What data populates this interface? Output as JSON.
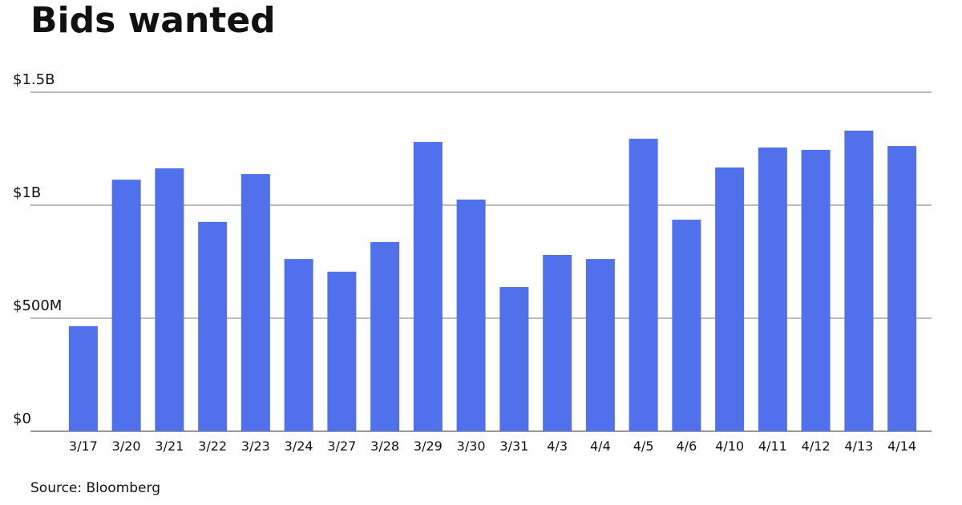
{
  "chart_data": {
    "type": "bar",
    "title": "Bids wanted",
    "source": "Source: Bloomberg",
    "categories": [
      "3/17",
      "3/20",
      "3/21",
      "3/22",
      "3/23",
      "3/24",
      "3/27",
      "3/28",
      "3/29",
      "3/30",
      "3/31",
      "4/3",
      "4/4",
      "4/5",
      "4/6",
      "4/10",
      "4/11",
      "4/12",
      "4/13",
      "4/14"
    ],
    "values": [
      0.465,
      1.113,
      1.163,
      0.926,
      1.138,
      0.762,
      0.706,
      0.837,
      1.28,
      1.025,
      0.638,
      0.78,
      0.762,
      1.294,
      0.936,
      1.167,
      1.255,
      1.245,
      1.33,
      1.262
    ],
    "color": "#5170eb",
    "ylim": [
      0,
      1.5
    ],
    "yticks": [
      {
        "value": 0,
        "label": "$0"
      },
      {
        "value": 0.5,
        "label": "$500M"
      },
      {
        "value": 1,
        "label": "$1B"
      },
      {
        "value": 1.5,
        "label": "$1.5B"
      }
    ],
    "grid": true
  }
}
